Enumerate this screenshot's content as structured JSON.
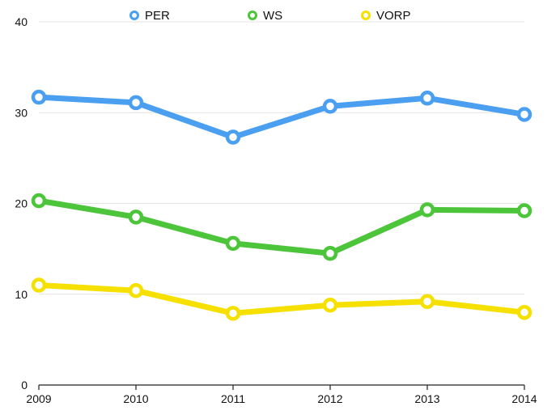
{
  "chart_data": {
    "type": "line",
    "title": "",
    "xlabel": "",
    "ylabel": "",
    "categories": [
      "2009",
      "2010",
      "2011",
      "2012",
      "2013",
      "2014"
    ],
    "ylim": [
      0,
      40
    ],
    "yticks": [
      0,
      10,
      20,
      30,
      40
    ],
    "grid": true,
    "legend_position": "top-center",
    "series": [
      {
        "name": "PER",
        "color": "#4a9ff0",
        "values": [
          31.7,
          31.1,
          27.3,
          30.7,
          31.6,
          29.8
        ]
      },
      {
        "name": "WS",
        "color": "#4cc53a",
        "values": [
          20.3,
          18.5,
          15.6,
          14.5,
          19.3,
          19.2
        ]
      },
      {
        "name": "VORP",
        "color": "#f5e000",
        "values": [
          11.0,
          10.4,
          7.9,
          8.8,
          9.2,
          8.0
        ]
      }
    ]
  }
}
